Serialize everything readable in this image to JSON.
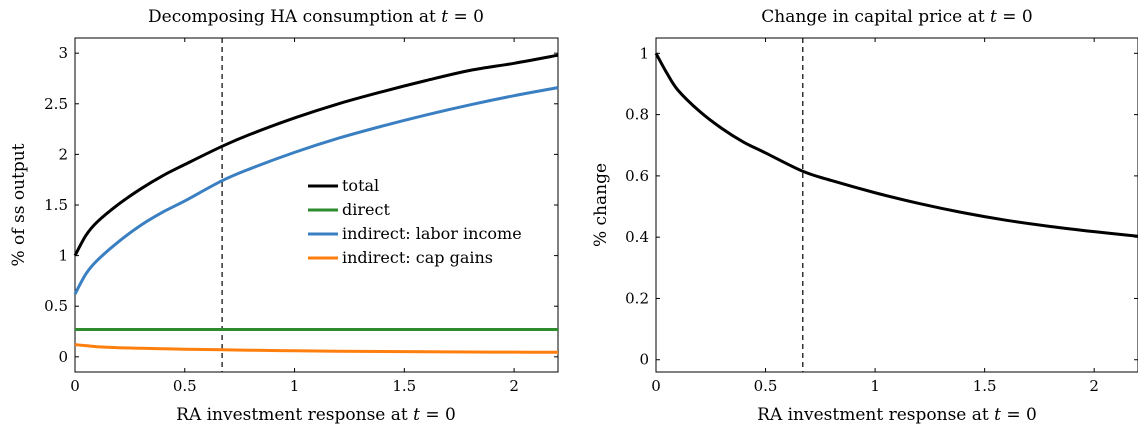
{
  "chart_data": [
    {
      "type": "line",
      "title": "Decomposing HA consumption at t = 0",
      "xlabel": "RA investment response at t = 0",
      "ylabel": "% of ss output",
      "xlim": [
        0,
        2.2
      ],
      "ylim": [
        -0.15,
        3.15
      ],
      "xticks": [
        0,
        0.5,
        1,
        1.5,
        2
      ],
      "xtick_labels": [
        "0",
        "0.5",
        "1",
        "1.5",
        "2"
      ],
      "yticks": [
        0,
        0.5,
        1,
        1.5,
        2,
        2.5,
        3
      ],
      "ytick_labels": [
        "0",
        "0.5",
        "1",
        "1.5",
        "2",
        "2.5",
        "3"
      ],
      "vertical_line_x": 0.67,
      "legend_position": "center-right",
      "grid": false,
      "x": [
        0,
        0.05,
        0.1,
        0.2,
        0.3,
        0.4,
        0.5,
        0.67,
        0.8,
        1.0,
        1.2,
        1.4,
        1.6,
        1.8,
        2.0,
        2.2
      ],
      "series": [
        {
          "name": "total",
          "color": "#000000",
          "values": [
            1.0,
            1.2,
            1.33,
            1.51,
            1.66,
            1.79,
            1.9,
            2.08,
            2.2,
            2.36,
            2.5,
            2.62,
            2.73,
            2.83,
            2.9,
            2.98
          ]
        },
        {
          "name": "direct",
          "color": "#2e8b2e",
          "values": [
            0.27,
            0.27,
            0.27,
            0.27,
            0.27,
            0.27,
            0.27,
            0.27,
            0.27,
            0.27,
            0.27,
            0.27,
            0.27,
            0.27,
            0.27,
            0.27
          ]
        },
        {
          "name": "indirect: labor income",
          "color": "#3a7fc1",
          "values": [
            0.62,
            0.82,
            0.95,
            1.14,
            1.3,
            1.43,
            1.54,
            1.74,
            1.86,
            2.02,
            2.16,
            2.28,
            2.39,
            2.49,
            2.58,
            2.66
          ]
        },
        {
          "name": "indirect: cap gains",
          "color": "#ff7f0e",
          "values": [
            0.12,
            0.11,
            0.1,
            0.09,
            0.085,
            0.08,
            0.075,
            0.07,
            0.065,
            0.06,
            0.055,
            0.052,
            0.05,
            0.048,
            0.046,
            0.045
          ]
        }
      ]
    },
    {
      "type": "line",
      "title": "Change in capital price at t = 0",
      "xlabel": "RA investment response at t = 0",
      "ylabel": "% change",
      "xlim": [
        0,
        2.2
      ],
      "ylim": [
        -0.04,
        1.05
      ],
      "xticks": [
        0,
        0.5,
        1,
        1.5,
        2
      ],
      "xtick_labels": [
        "0",
        "0.5",
        "1",
        "1.5",
        "2"
      ],
      "yticks": [
        0,
        0.2,
        0.4,
        0.6,
        0.8,
        1
      ],
      "ytick_labels": [
        "0",
        "0.2",
        "0.4",
        "0.6",
        "0.8",
        "1"
      ],
      "vertical_line_x": 0.67,
      "grid": false,
      "x": [
        0,
        0.05,
        0.1,
        0.2,
        0.3,
        0.4,
        0.5,
        0.67,
        0.8,
        1.0,
        1.2,
        1.4,
        1.6,
        1.8,
        2.0,
        2.2
      ],
      "series": [
        {
          "color": "#000000",
          "values": [
            1.0,
            0.935,
            0.88,
            0.81,
            0.755,
            0.71,
            0.675,
            0.615,
            0.585,
            0.545,
            0.51,
            0.48,
            0.455,
            0.435,
            0.418,
            0.403
          ]
        }
      ]
    }
  ]
}
